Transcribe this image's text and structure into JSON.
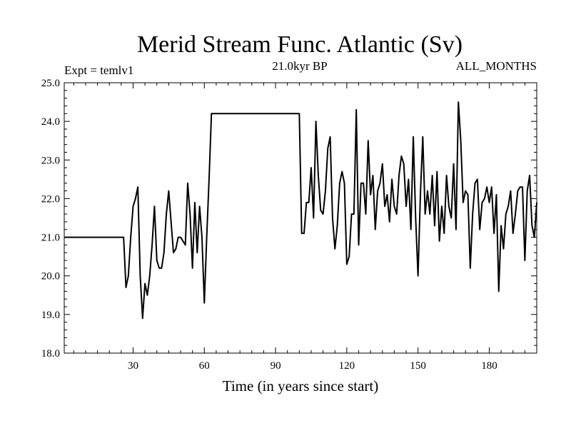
{
  "chart_data": {
    "type": "line",
    "title": "Merid Stream Func. Atlantic (Sv)",
    "subtitle_left": "Expt = temlv1",
    "subtitle_center": "21.0kyr BP",
    "subtitle_right": "ALL_MONTHS",
    "xlabel": "Time (in years since start)",
    "ylabel": "",
    "xlim": [
      1,
      200
    ],
    "ylim": [
      18.0,
      25.0
    ],
    "xticks": [
      30,
      60,
      90,
      120,
      150,
      180
    ],
    "yticks": [
      18.0,
      19.0,
      20.0,
      21.0,
      22.0,
      23.0,
      24.0,
      25.0
    ],
    "grid": false,
    "legend": "none",
    "series_color": "#000000",
    "series": [
      {
        "x": [
          1,
          26,
          27,
          28,
          29,
          30,
          31,
          32,
          33,
          34,
          35,
          36,
          37,
          38,
          39,
          40,
          41,
          42,
          43,
          44,
          45,
          46,
          47,
          48,
          49,
          50,
          51,
          52,
          53,
          54,
          55,
          56,
          57,
          58,
          59,
          60,
          61,
          62,
          63,
          64,
          65,
          100,
          101,
          102,
          103,
          104,
          105,
          106,
          107,
          108,
          109,
          110,
          111,
          112,
          113,
          114,
          115,
          116,
          117,
          118,
          119,
          120,
          121,
          122,
          123,
          124,
          125,
          126,
          127,
          128,
          129,
          130,
          131,
          132,
          133,
          134,
          135,
          136,
          137,
          138,
          139,
          140,
          141,
          142,
          143,
          144,
          145,
          146,
          147,
          148,
          149,
          150,
          151,
          152,
          153,
          154,
          155,
          156,
          157,
          158,
          159,
          160,
          161,
          162,
          163,
          164,
          165,
          166,
          167,
          168,
          169,
          170,
          171,
          172,
          173,
          174,
          175,
          176,
          177,
          178,
          179,
          180,
          181,
          182,
          183,
          184,
          185,
          186,
          187,
          188,
          189,
          190,
          191,
          192,
          193,
          194,
          195,
          196,
          197,
          198,
          199,
          200
        ],
        "values": [
          21.0,
          21.0,
          19.7,
          20.0,
          21.0,
          21.8,
          22.0,
          22.3,
          20.0,
          18.9,
          19.8,
          19.5,
          20.0,
          20.8,
          21.8,
          20.4,
          20.2,
          20.2,
          20.6,
          21.6,
          22.2,
          21.4,
          20.6,
          20.7,
          21.0,
          21.0,
          20.9,
          20.8,
          22.4,
          21.6,
          20.2,
          21.9,
          20.6,
          21.8,
          21.0,
          19.3,
          21.0,
          22.5,
          24.2,
          24.2,
          24.2,
          24.2,
          21.1,
          21.1,
          21.9,
          21.9,
          22.8,
          21.5,
          24.0,
          22.6,
          21.7,
          21.6,
          22.2,
          23.3,
          23.6,
          21.5,
          20.7,
          21.3,
          22.4,
          22.7,
          22.4,
          20.3,
          20.5,
          21.6,
          21.6,
          24.3,
          20.8,
          22.4,
          22.4,
          21.6,
          23.5,
          22.1,
          22.6,
          21.2,
          22.2,
          22.4,
          22.9,
          21.8,
          22.1,
          21.4,
          22.5,
          21.8,
          21.6,
          22.6,
          23.1,
          22.9,
          21.8,
          22.5,
          21.2,
          23.6,
          21.5,
          20.0,
          22.1,
          23.6,
          21.6,
          22.2,
          21.6,
          22.6,
          21.3,
          22.7,
          20.9,
          21.8,
          21.1,
          22.6,
          21.8,
          21.5,
          22.9,
          21.2,
          24.5,
          23.5,
          21.9,
          22.2,
          22.1,
          20.2,
          21.6,
          22.4,
          22.5,
          21.2,
          21.9,
          22.0,
          22.3,
          21.9,
          22.3,
          21.1,
          22.1,
          19.6,
          21.3,
          20.7,
          21.6,
          21.8,
          22.2,
          21.1,
          21.6,
          22.2,
          22.3,
          22.3,
          20.4,
          22.2,
          22.6,
          21.3,
          21.0,
          21.9
        ]
      }
    ]
  }
}
